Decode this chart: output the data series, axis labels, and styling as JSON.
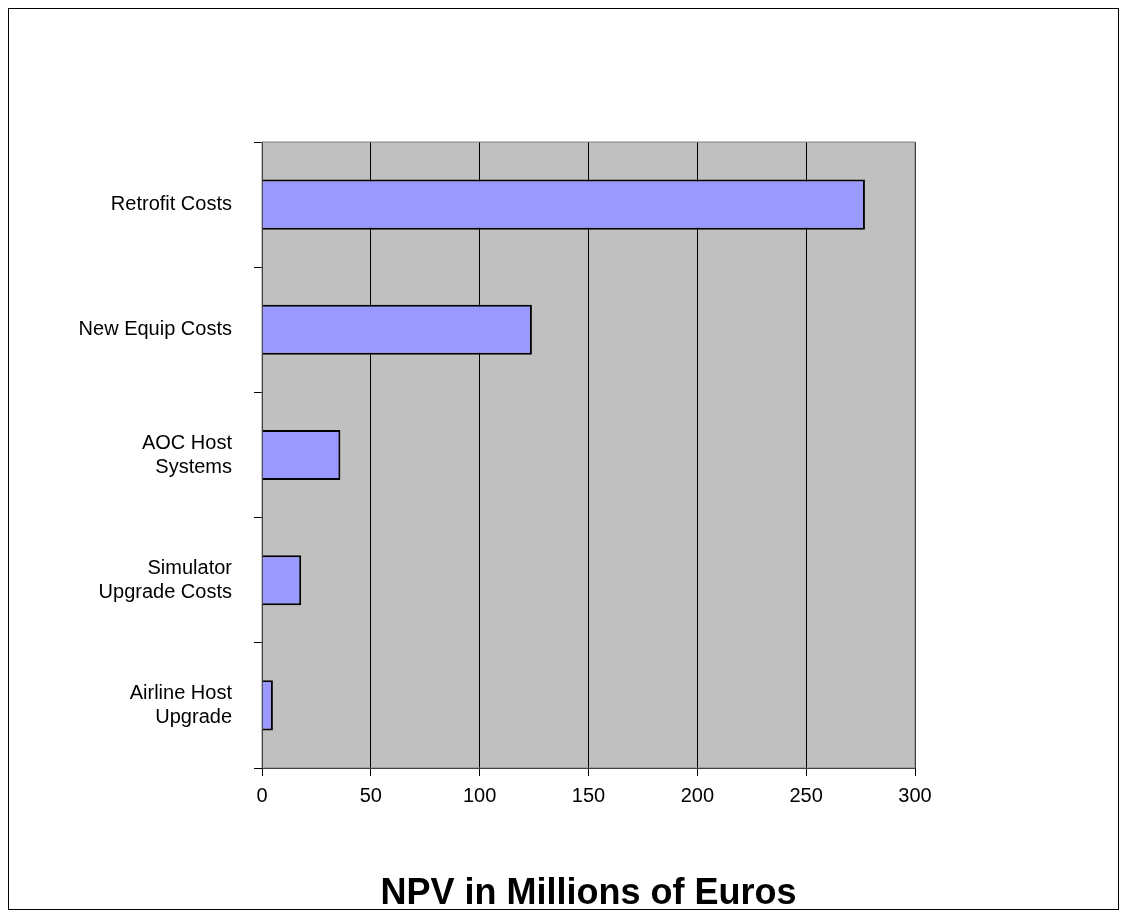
{
  "chart_data": {
    "type": "bar",
    "orientation": "horizontal",
    "xlabel": "NPV in Millions of Euros",
    "categories": [
      "Retrofit Costs",
      "New Equip Costs",
      "AOC Host Systems",
      "Simulator Upgrade Costs",
      "Airline Host Upgrade"
    ],
    "values": [
      277,
      124,
      36,
      18,
      5
    ],
    "color": "#9999ff",
    "xlim": [
      0,
      300
    ],
    "xticks": [
      0,
      50,
      100,
      150,
      200,
      250,
      300
    ],
    "grid": "x",
    "legend": false
  }
}
